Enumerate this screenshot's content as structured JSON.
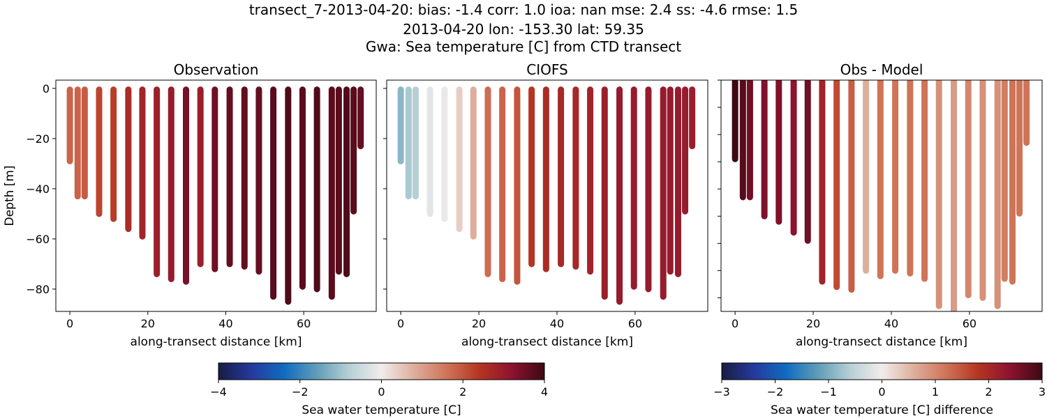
{
  "title_lines": [
    "transect_7-2013-04-20: bias: -1.4  corr: 1.0  ioa: nan  mse: 2.4  ss: -4.6  rmse: 1.5",
    "2013-04-20 lon: -153.30 lat: 59.35",
    "Gwa: Sea temperature [C] from CTD transect"
  ],
  "chart_data": [
    {
      "type": "scatter",
      "title": "Observation",
      "xlabel": "along-transect distance [km]",
      "ylabel": "Depth [m]",
      "xlim": [
        -3.6,
        78.6
      ],
      "ylim": [
        -88.9,
        3.3
      ],
      "xticks": [
        0,
        20,
        40,
        60
      ],
      "yticks": [
        0,
        -20,
        -40,
        -60,
        -80
      ],
      "x": [
        0,
        2,
        3.8,
        7.5,
        11.2,
        15,
        18.6,
        22.3,
        26,
        29.8,
        33.5,
        37.2,
        41,
        44.8,
        48.5,
        52.2,
        56,
        59.7,
        63.4,
        67.2,
        69,
        71,
        72.8,
        74.6
      ],
      "max_depth": [
        -29,
        -43,
        -43,
        -50,
        -52,
        -56,
        -59,
        -74,
        -76,
        -77,
        -70,
        -72,
        -70,
        -71,
        -73,
        -83,
        -85,
        -79,
        -80,
        -83,
        -73,
        -74,
        -49,
        -23
      ],
      "values": [
        1.8,
        1.8,
        1.9,
        2.2,
        2.3,
        2.6,
        2.8,
        2.9,
        3.0,
        3.4,
        2.9,
        3.5,
        3.6,
        3.6,
        3.6,
        3.7,
        3.8,
        3.7,
        3.8,
        3.7,
        3.7,
        3.8,
        3.7,
        3.6
      ],
      "colormap": "balance",
      "clim": [
        -4,
        4
      ]
    },
    {
      "type": "scatter",
      "title": "CIOFS",
      "xlabel": "along-transect distance [km]",
      "xlim": [
        -3.6,
        78.6
      ],
      "ylim": [
        -88.9,
        3.3
      ],
      "xticks": [
        0,
        20,
        40,
        60
      ],
      "values": [
        -1.2,
        -0.9,
        -0.8,
        -0.2,
        -0.1,
        0.4,
        0.8,
        1.7,
        1.8,
        2.0,
        2.4,
        2.6,
        2.7,
        2.7,
        2.8,
        2.9,
        3.0,
        3.0,
        3.0,
        3.0,
        3.0,
        3.0,
        3.0,
        2.9
      ],
      "colormap": "balance",
      "clim": [
        -4,
        4
      ]
    },
    {
      "type": "scatter",
      "title": "Obs - Model",
      "xlabel": "along-transect distance [km]",
      "xlim": [
        -3.6,
        78.6
      ],
      "ylim": [
        -85,
        0
      ],
      "xticks": [
        0,
        20,
        40,
        60
      ],
      "yticks_unlabeled": [
        0,
        -10,
        -20,
        -30,
        -40,
        -50,
        -60,
        -70,
        -80
      ],
      "values": [
        3.0,
        2.8,
        2.6,
        2.5,
        2.5,
        2.4,
        2.6,
        2.1,
        1.6,
        1.4,
        0.6,
        1.2,
        1.2,
        1.2,
        1.2,
        0.9,
        0.8,
        1.0,
        0.9,
        0.9,
        1.1,
        1.2,
        1.2,
        1.2
      ],
      "colormap": "balance",
      "clim": [
        -3,
        3
      ]
    }
  ],
  "colorbars": [
    {
      "label": "Sea water temperature [C]",
      "ticks": [
        -4,
        -2,
        0,
        2,
        4
      ],
      "range": [
        -4,
        4
      ]
    },
    {
      "label": "Sea water temperature [C] difference",
      "ticks": [
        -3,
        -2,
        -1,
        0,
        1,
        2,
        3
      ],
      "range": [
        -3,
        3
      ]
    }
  ],
  "colormap_stops": [
    "#181c43",
    "#243a9c",
    "#0f6bc0",
    "#5f9cb7",
    "#b6cfd5",
    "#f1ecec",
    "#ddae9c",
    "#cf7457",
    "#b53522",
    "#8c1230",
    "#3c0912"
  ]
}
